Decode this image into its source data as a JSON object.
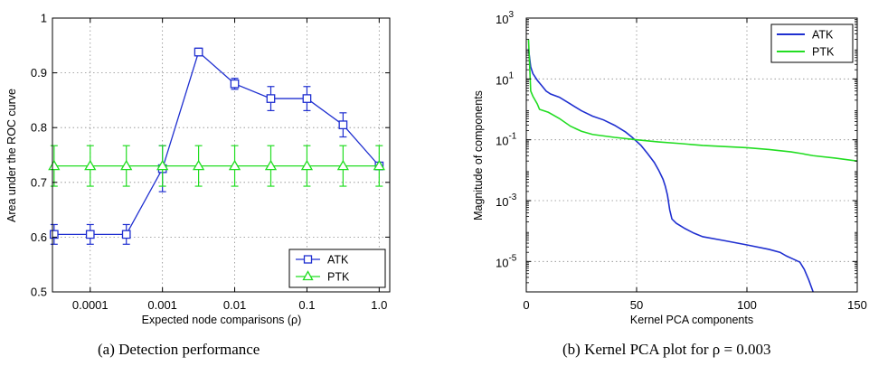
{
  "chart_data": [
    {
      "type": "line",
      "caption": "(a)  Detection performance",
      "xlabel": "Expected node comparisons (ρ)",
      "ylabel": "Area under the ROC curve",
      "xscale": "log",
      "xlim": [
        3e-05,
        1.4
      ],
      "ylim": [
        0.5,
        1.0
      ],
      "xticks": [
        0.0001,
        0.001,
        0.01,
        0.1,
        1.0
      ],
      "xtick_labels": [
        "0.0001",
        "0.001",
        "0.01",
        "0.1",
        "1.0"
      ],
      "yticks": [
        0.5,
        0.6,
        0.7,
        0.8,
        0.9,
        1.0
      ],
      "ytick_labels": [
        "0.5",
        "0.6",
        "0.7",
        "0.8",
        "0.9",
        "1"
      ],
      "grid": true,
      "legend_position": "bottom-right",
      "x": [
        3.162e-05,
        0.0001,
        0.0003162,
        0.001,
        0.003162,
        0.01,
        0.03162,
        0.1,
        0.3162,
        1.0
      ],
      "series": [
        {
          "name": "ATK",
          "color": "#1f2fd0",
          "marker": "square",
          "values": [
            0.605,
            0.605,
            0.605,
            0.725,
            0.938,
            0.88,
            0.853,
            0.853,
            0.805,
            0.73
          ],
          "errors": [
            0.018,
            0.018,
            0.018,
            0.042,
            0.007,
            0.01,
            0.022,
            0.022,
            0.022,
            0.006
          ]
        },
        {
          "name": "PTK",
          "color": "#22dd22",
          "marker": "triangle",
          "values": [
            0.73,
            0.73,
            0.73,
            0.73,
            0.73,
            0.73,
            0.73,
            0.73,
            0.73,
            0.73
          ],
          "errors": [
            0.037,
            0.037,
            0.037,
            0.037,
            0.037,
            0.037,
            0.037,
            0.037,
            0.037,
            0.037
          ]
        }
      ]
    },
    {
      "type": "line",
      "caption": "(b)  Kernel PCA plot for ρ = 0.003",
      "xlabel": "Kernel PCA components",
      "ylabel": "Magnitude of components",
      "yscale": "log",
      "xlim": [
        0,
        150
      ],
      "ylim": [
        1e-06,
        1000
      ],
      "xticks": [
        0,
        50,
        100,
        150
      ],
      "xtick_labels": [
        "0",
        "50",
        "100",
        "150"
      ],
      "ytick_exponents": [
        -5,
        -3,
        -1,
        1,
        3
      ],
      "ytick_base": "10",
      "grid": true,
      "legend_position": "top-right",
      "series": [
        {
          "name": "ATK",
          "color": "#1f2fd0",
          "points": [
            [
              1,
              100
            ],
            [
              2,
              25
            ],
            [
              3,
              15
            ],
            [
              5,
              9
            ],
            [
              7,
              6
            ],
            [
              9,
              4
            ],
            [
              11,
              3.2
            ],
            [
              15,
              2.5
            ],
            [
              20,
              1.5
            ],
            [
              25,
              0.9
            ],
            [
              30,
              0.6
            ],
            [
              35,
              0.45
            ],
            [
              40,
              0.3
            ],
            [
              45,
              0.18
            ],
            [
              48,
              0.12
            ],
            [
              52,
              0.065
            ],
            [
              55,
              0.035
            ],
            [
              58,
              0.018
            ],
            [
              60,
              0.01
            ],
            [
              62,
              0.005
            ],
            [
              63,
              0.003
            ],
            [
              64,
              0.0015
            ],
            [
              65,
              0.0005
            ],
            [
              66,
              0.00025
            ],
            [
              68,
              0.00018
            ],
            [
              72,
              0.00012
            ],
            [
              76,
              8.5e-05
            ],
            [
              80,
              6.5e-05
            ],
            [
              90,
              4.8e-05
            ],
            [
              100,
              3.5e-05
            ],
            [
              110,
              2.5e-05
            ],
            [
              115,
              2e-05
            ],
            [
              118,
              1.5e-05
            ],
            [
              121,
              1.2e-05
            ],
            [
              124,
              9.5e-06
            ],
            [
              126,
              5.5e-06
            ],
            [
              128,
              2.5e-06
            ],
            [
              130,
              1e-06
            ]
          ]
        },
        {
          "name": "PTK",
          "color": "#22dd22",
          "points": [
            [
              1,
              200
            ],
            [
              1.5,
              30
            ],
            [
              2,
              4
            ],
            [
              3,
              2.7
            ],
            [
              5,
              1.5
            ],
            [
              6,
              1.0
            ],
            [
              10,
              0.8
            ],
            [
              15,
              0.5
            ],
            [
              20,
              0.28
            ],
            [
              25,
              0.19
            ],
            [
              30,
              0.15
            ],
            [
              40,
              0.12
            ],
            [
              50,
              0.1
            ],
            [
              60,
              0.085
            ],
            [
              70,
              0.075
            ],
            [
              80,
              0.065
            ],
            [
              90,
              0.06
            ],
            [
              100,
              0.055
            ],
            [
              110,
              0.048
            ],
            [
              120,
              0.04
            ],
            [
              125,
              0.035
            ],
            [
              130,
              0.03
            ],
            [
              140,
              0.025
            ],
            [
              150,
              0.02
            ]
          ]
        }
      ]
    }
  ]
}
